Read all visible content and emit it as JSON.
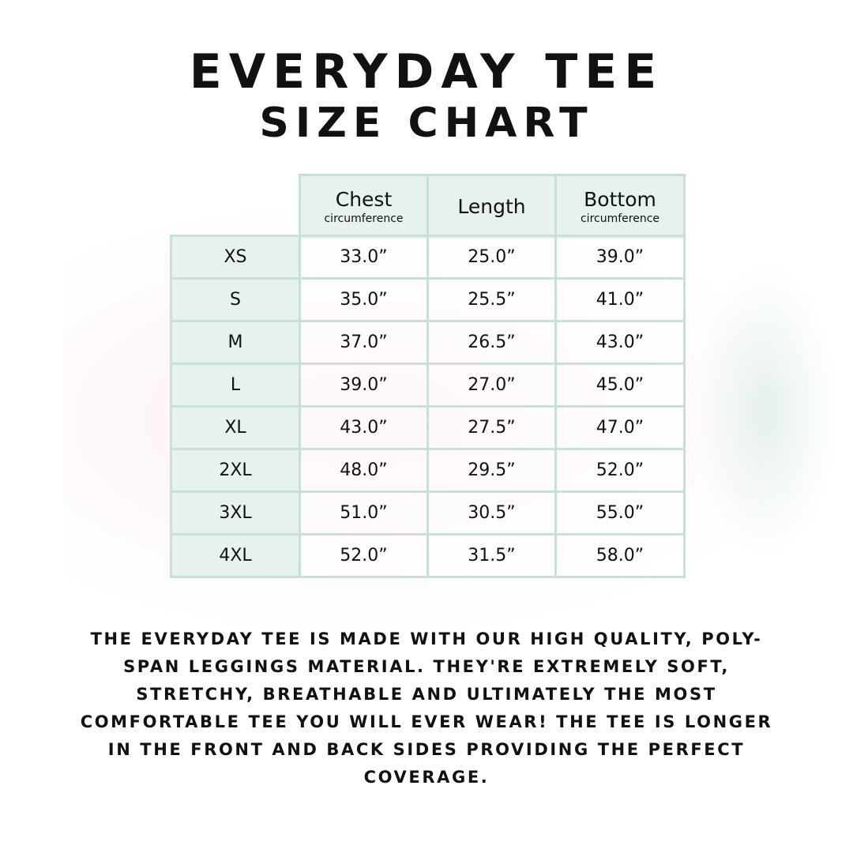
{
  "title": {
    "line1": "EVERYDAY TEE",
    "line2": "SIZE CHART"
  },
  "table": {
    "headers": [
      {
        "main": "Chest",
        "sub": "circumference"
      },
      {
        "main": "Length",
        "sub": ""
      },
      {
        "main": "Bottom",
        "sub": "circumference"
      }
    ],
    "rows": [
      {
        "size": "XS",
        "values": [
          "33.0”",
          "25.0”",
          "39.0”"
        ]
      },
      {
        "size": "S",
        "values": [
          "35.0”",
          "25.5”",
          "41.0”"
        ]
      },
      {
        "size": "M",
        "values": [
          "37.0”",
          "26.5”",
          "43.0”"
        ]
      },
      {
        "size": "L",
        "values": [
          "39.0”",
          "27.0”",
          "45.0”"
        ]
      },
      {
        "size": "XL",
        "values": [
          "43.0”",
          "27.5”",
          "47.0”"
        ]
      },
      {
        "size": "2XL",
        "values": [
          "48.0”",
          "29.5”",
          "52.0”"
        ]
      },
      {
        "size": "3XL",
        "values": [
          "51.0”",
          "30.5”",
          "55.0”"
        ]
      },
      {
        "size": "4XL",
        "values": [
          "52.0”",
          "31.5”",
          "58.0”"
        ]
      }
    ]
  },
  "description": "THE EVERYDAY TEE IS MADE WITH OUR HIGH QUALITY, POLY-SPAN LEGGINGS MATERIAL. THEY'RE EXTREMELY SOFT, STRETCHY, BREATHABLE AND ULTIMATELY THE MOST COMFORTABLE TEE YOU WILL EVER WEAR! THE TEE IS LONGER IN THE FRONT AND BACK SIDES PROVIDING THE PERFECT COVERAGE.",
  "colors": {
    "border": "#c9e0d6",
    "header_bg": "#e7f1ed"
  }
}
